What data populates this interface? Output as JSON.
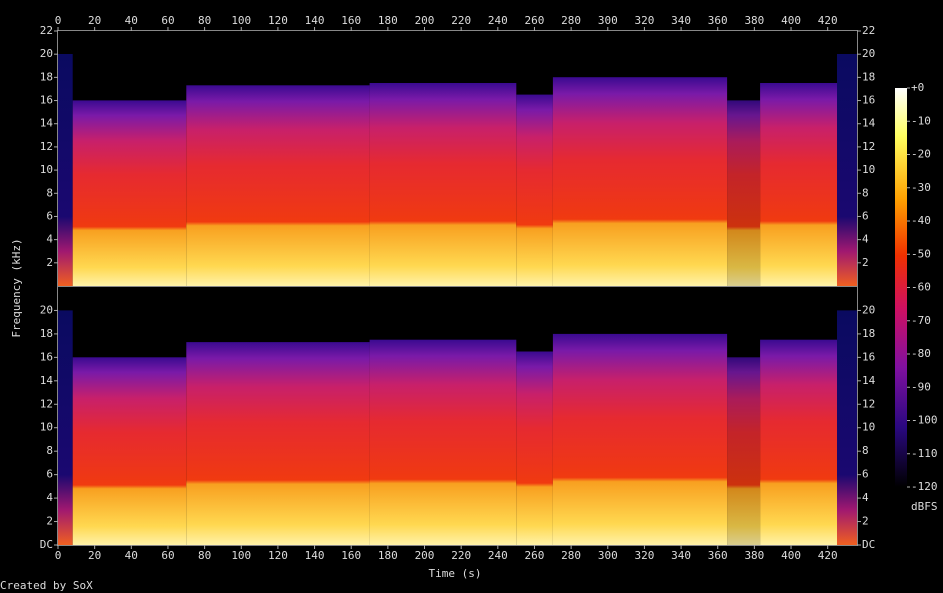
{
  "chart_data": {
    "type": "spectrogram",
    "x_label": "Time (s)",
    "y_label": "Frequency (kHz)",
    "xlim": [
      0,
      436
    ],
    "xticks": [
      0,
      20,
      40,
      60,
      80,
      100,
      120,
      140,
      160,
      180,
      200,
      220,
      240,
      260,
      280,
      300,
      320,
      340,
      360,
      380,
      400,
      420
    ],
    "channels": [
      {
        "ylim": [
          0,
          22
        ],
        "yticks": [
          2,
          4,
          6,
          8,
          10,
          12,
          14,
          16,
          18,
          20,
          22
        ]
      },
      {
        "ylim": [
          0,
          22
        ],
        "yticks": [
          {
            "value": 0,
            "label": "DC"
          },
          2,
          4,
          6,
          8,
          10,
          12,
          14,
          16,
          18,
          20
        ]
      }
    ],
    "colorbar": {
      "label": "dBFS",
      "lim": [
        -120,
        0
      ],
      "ticks": [
        {
          "value": 0,
          "label": "+0"
        },
        -10,
        -20,
        -30,
        -40,
        -50,
        -60,
        -70,
        -80,
        -90,
        -100,
        -110,
        -120
      ]
    },
    "credit": "Created by SoX"
  }
}
